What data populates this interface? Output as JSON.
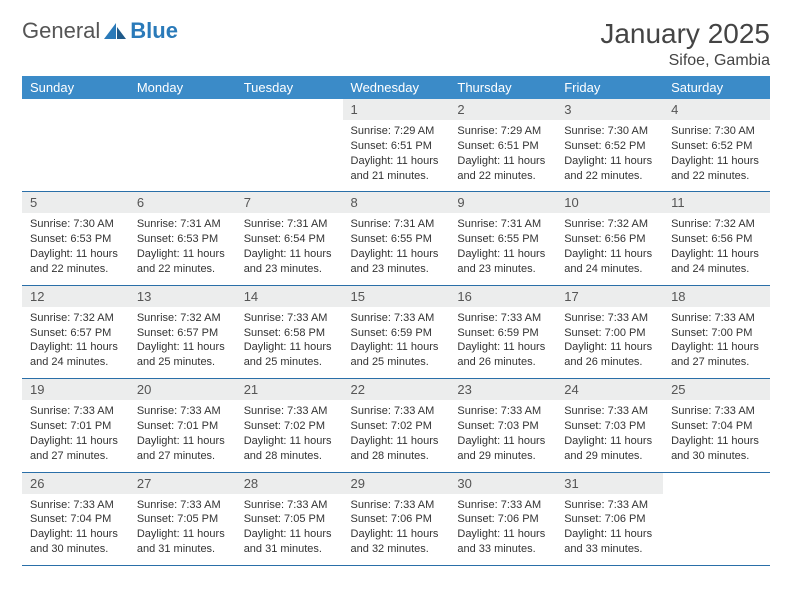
{
  "logo": {
    "text1": "General",
    "text2": "Blue"
  },
  "title": "January 2025",
  "location": "Sifoe, Gambia",
  "colors": {
    "header_bg": "#3b8bc8",
    "header_text": "#ffffff",
    "daynum_bg": "#eceded",
    "row_border": "#2a6fa8",
    "logo_blue": "#2a7ab9",
    "body_text": "#333333"
  },
  "day_headers": [
    "Sunday",
    "Monday",
    "Tuesday",
    "Wednesday",
    "Thursday",
    "Friday",
    "Saturday"
  ],
  "weeks": [
    [
      {
        "n": "",
        "sunrise": "",
        "sunset": "",
        "daylight": "",
        "e": true
      },
      {
        "n": "",
        "sunrise": "",
        "sunset": "",
        "daylight": "",
        "e": true
      },
      {
        "n": "",
        "sunrise": "",
        "sunset": "",
        "daylight": "",
        "e": true
      },
      {
        "n": "1",
        "sunrise": "Sunrise: 7:29 AM",
        "sunset": "Sunset: 6:51 PM",
        "daylight": "Daylight: 11 hours and 21 minutes."
      },
      {
        "n": "2",
        "sunrise": "Sunrise: 7:29 AM",
        "sunset": "Sunset: 6:51 PM",
        "daylight": "Daylight: 11 hours and 22 minutes."
      },
      {
        "n": "3",
        "sunrise": "Sunrise: 7:30 AM",
        "sunset": "Sunset: 6:52 PM",
        "daylight": "Daylight: 11 hours and 22 minutes."
      },
      {
        "n": "4",
        "sunrise": "Sunrise: 7:30 AM",
        "sunset": "Sunset: 6:52 PM",
        "daylight": "Daylight: 11 hours and 22 minutes."
      }
    ],
    [
      {
        "n": "5",
        "sunrise": "Sunrise: 7:30 AM",
        "sunset": "Sunset: 6:53 PM",
        "daylight": "Daylight: 11 hours and 22 minutes."
      },
      {
        "n": "6",
        "sunrise": "Sunrise: 7:31 AM",
        "sunset": "Sunset: 6:53 PM",
        "daylight": "Daylight: 11 hours and 22 minutes."
      },
      {
        "n": "7",
        "sunrise": "Sunrise: 7:31 AM",
        "sunset": "Sunset: 6:54 PM",
        "daylight": "Daylight: 11 hours and 23 minutes."
      },
      {
        "n": "8",
        "sunrise": "Sunrise: 7:31 AM",
        "sunset": "Sunset: 6:55 PM",
        "daylight": "Daylight: 11 hours and 23 minutes."
      },
      {
        "n": "9",
        "sunrise": "Sunrise: 7:31 AM",
        "sunset": "Sunset: 6:55 PM",
        "daylight": "Daylight: 11 hours and 23 minutes."
      },
      {
        "n": "10",
        "sunrise": "Sunrise: 7:32 AM",
        "sunset": "Sunset: 6:56 PM",
        "daylight": "Daylight: 11 hours and 24 minutes."
      },
      {
        "n": "11",
        "sunrise": "Sunrise: 7:32 AM",
        "sunset": "Sunset: 6:56 PM",
        "daylight": "Daylight: 11 hours and 24 minutes."
      }
    ],
    [
      {
        "n": "12",
        "sunrise": "Sunrise: 7:32 AM",
        "sunset": "Sunset: 6:57 PM",
        "daylight": "Daylight: 11 hours and 24 minutes."
      },
      {
        "n": "13",
        "sunrise": "Sunrise: 7:32 AM",
        "sunset": "Sunset: 6:57 PM",
        "daylight": "Daylight: 11 hours and 25 minutes."
      },
      {
        "n": "14",
        "sunrise": "Sunrise: 7:33 AM",
        "sunset": "Sunset: 6:58 PM",
        "daylight": "Daylight: 11 hours and 25 minutes."
      },
      {
        "n": "15",
        "sunrise": "Sunrise: 7:33 AM",
        "sunset": "Sunset: 6:59 PM",
        "daylight": "Daylight: 11 hours and 25 minutes."
      },
      {
        "n": "16",
        "sunrise": "Sunrise: 7:33 AM",
        "sunset": "Sunset: 6:59 PM",
        "daylight": "Daylight: 11 hours and 26 minutes."
      },
      {
        "n": "17",
        "sunrise": "Sunrise: 7:33 AM",
        "sunset": "Sunset: 7:00 PM",
        "daylight": "Daylight: 11 hours and 26 minutes."
      },
      {
        "n": "18",
        "sunrise": "Sunrise: 7:33 AM",
        "sunset": "Sunset: 7:00 PM",
        "daylight": "Daylight: 11 hours and 27 minutes."
      }
    ],
    [
      {
        "n": "19",
        "sunrise": "Sunrise: 7:33 AM",
        "sunset": "Sunset: 7:01 PM",
        "daylight": "Daylight: 11 hours and 27 minutes."
      },
      {
        "n": "20",
        "sunrise": "Sunrise: 7:33 AM",
        "sunset": "Sunset: 7:01 PM",
        "daylight": "Daylight: 11 hours and 27 minutes."
      },
      {
        "n": "21",
        "sunrise": "Sunrise: 7:33 AM",
        "sunset": "Sunset: 7:02 PM",
        "daylight": "Daylight: 11 hours and 28 minutes."
      },
      {
        "n": "22",
        "sunrise": "Sunrise: 7:33 AM",
        "sunset": "Sunset: 7:02 PM",
        "daylight": "Daylight: 11 hours and 28 minutes."
      },
      {
        "n": "23",
        "sunrise": "Sunrise: 7:33 AM",
        "sunset": "Sunset: 7:03 PM",
        "daylight": "Daylight: 11 hours and 29 minutes."
      },
      {
        "n": "24",
        "sunrise": "Sunrise: 7:33 AM",
        "sunset": "Sunset: 7:03 PM",
        "daylight": "Daylight: 11 hours and 29 minutes."
      },
      {
        "n": "25",
        "sunrise": "Sunrise: 7:33 AM",
        "sunset": "Sunset: 7:04 PM",
        "daylight": "Daylight: 11 hours and 30 minutes."
      }
    ],
    [
      {
        "n": "26",
        "sunrise": "Sunrise: 7:33 AM",
        "sunset": "Sunset: 7:04 PM",
        "daylight": "Daylight: 11 hours and 30 minutes."
      },
      {
        "n": "27",
        "sunrise": "Sunrise: 7:33 AM",
        "sunset": "Sunset: 7:05 PM",
        "daylight": "Daylight: 11 hours and 31 minutes."
      },
      {
        "n": "28",
        "sunrise": "Sunrise: 7:33 AM",
        "sunset": "Sunset: 7:05 PM",
        "daylight": "Daylight: 11 hours and 31 minutes."
      },
      {
        "n": "29",
        "sunrise": "Sunrise: 7:33 AM",
        "sunset": "Sunset: 7:06 PM",
        "daylight": "Daylight: 11 hours and 32 minutes."
      },
      {
        "n": "30",
        "sunrise": "Sunrise: 7:33 AM",
        "sunset": "Sunset: 7:06 PM",
        "daylight": "Daylight: 11 hours and 33 minutes."
      },
      {
        "n": "31",
        "sunrise": "Sunrise: 7:33 AM",
        "sunset": "Sunset: 7:06 PM",
        "daylight": "Daylight: 11 hours and 33 minutes."
      },
      {
        "n": "",
        "sunrise": "",
        "sunset": "",
        "daylight": "",
        "e": true
      }
    ]
  ]
}
